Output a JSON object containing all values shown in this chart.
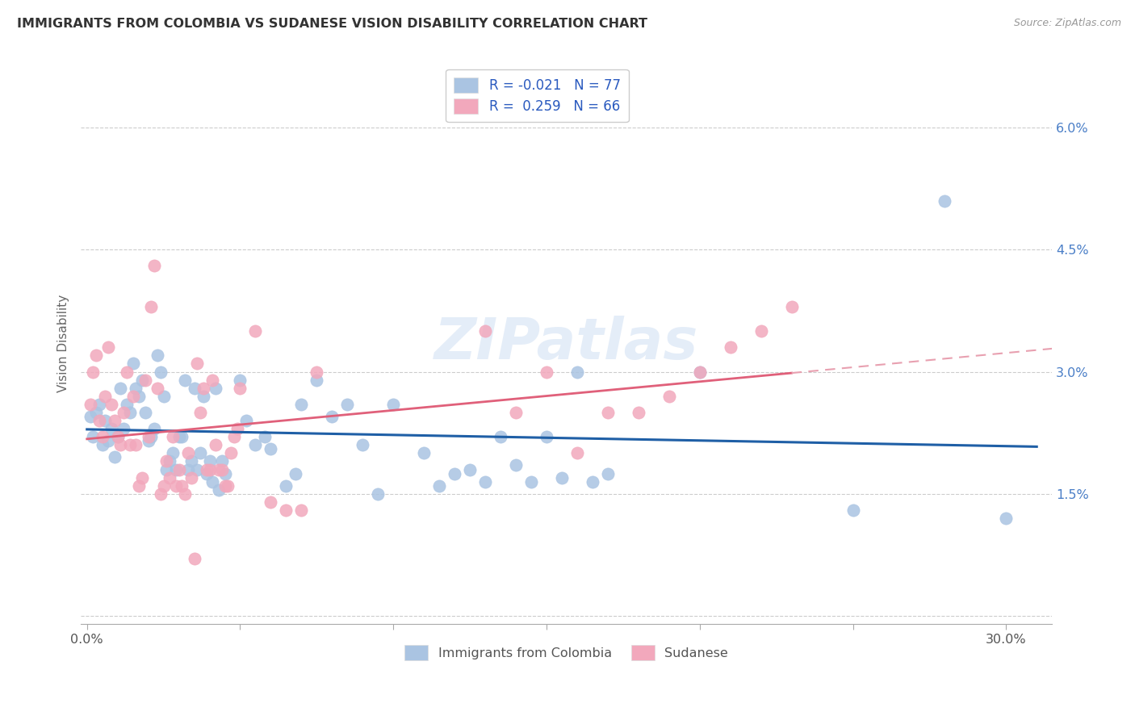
{
  "title": "IMMIGRANTS FROM COLOMBIA VS SUDANESE VISION DISABILITY CORRELATION CHART",
  "source": "Source: ZipAtlas.com",
  "ylabel": "Vision Disability",
  "ymin": -0.001,
  "ymax": 0.068,
  "xmin": -0.002,
  "xmax": 0.315,
  "watermark": "ZIPatlas",
  "colombia_color": "#aac4e2",
  "sudanese_color": "#f2a8bc",
  "colombia_line_color": "#1f5fa6",
  "sudanese_line_color": "#e0607a",
  "sudanese_dash_color": "#e8a0b0",
  "colombia_scatter": [
    [
      0.001,
      0.0245
    ],
    [
      0.002,
      0.022
    ],
    [
      0.003,
      0.025
    ],
    [
      0.004,
      0.026
    ],
    [
      0.005,
      0.021
    ],
    [
      0.006,
      0.024
    ],
    [
      0.007,
      0.0215
    ],
    [
      0.008,
      0.023
    ],
    [
      0.009,
      0.0195
    ],
    [
      0.01,
      0.022
    ],
    [
      0.011,
      0.028
    ],
    [
      0.012,
      0.023
    ],
    [
      0.013,
      0.026
    ],
    [
      0.014,
      0.025
    ],
    [
      0.015,
      0.031
    ],
    [
      0.016,
      0.028
    ],
    [
      0.017,
      0.027
    ],
    [
      0.018,
      0.029
    ],
    [
      0.019,
      0.025
    ],
    [
      0.02,
      0.0215
    ],
    [
      0.021,
      0.022
    ],
    [
      0.022,
      0.023
    ],
    [
      0.023,
      0.032
    ],
    [
      0.024,
      0.03
    ],
    [
      0.025,
      0.027
    ],
    [
      0.026,
      0.018
    ],
    [
      0.027,
      0.019
    ],
    [
      0.028,
      0.02
    ],
    [
      0.029,
      0.018
    ],
    [
      0.03,
      0.022
    ],
    [
      0.031,
      0.022
    ],
    [
      0.032,
      0.029
    ],
    [
      0.033,
      0.018
    ],
    [
      0.034,
      0.019
    ],
    [
      0.035,
      0.028
    ],
    [
      0.036,
      0.018
    ],
    [
      0.037,
      0.02
    ],
    [
      0.038,
      0.027
    ],
    [
      0.039,
      0.0175
    ],
    [
      0.04,
      0.019
    ],
    [
      0.041,
      0.0165
    ],
    [
      0.042,
      0.028
    ],
    [
      0.043,
      0.0155
    ],
    [
      0.044,
      0.019
    ],
    [
      0.045,
      0.0175
    ],
    [
      0.05,
      0.029
    ],
    [
      0.052,
      0.024
    ],
    [
      0.055,
      0.021
    ],
    [
      0.058,
      0.022
    ],
    [
      0.06,
      0.0205
    ],
    [
      0.065,
      0.016
    ],
    [
      0.068,
      0.0175
    ],
    [
      0.07,
      0.026
    ],
    [
      0.075,
      0.029
    ],
    [
      0.08,
      0.0245
    ],
    [
      0.085,
      0.026
    ],
    [
      0.09,
      0.021
    ],
    [
      0.095,
      0.015
    ],
    [
      0.1,
      0.026
    ],
    [
      0.11,
      0.02
    ],
    [
      0.115,
      0.016
    ],
    [
      0.12,
      0.0175
    ],
    [
      0.125,
      0.018
    ],
    [
      0.13,
      0.0165
    ],
    [
      0.135,
      0.022
    ],
    [
      0.14,
      0.0185
    ],
    [
      0.145,
      0.0165
    ],
    [
      0.15,
      0.022
    ],
    [
      0.155,
      0.017
    ],
    [
      0.16,
      0.03
    ],
    [
      0.165,
      0.0165
    ],
    [
      0.17,
      0.0175
    ],
    [
      0.2,
      0.03
    ],
    [
      0.25,
      0.013
    ],
    [
      0.28,
      0.051
    ],
    [
      0.3,
      0.012
    ]
  ],
  "sudanese_scatter": [
    [
      0.001,
      0.026
    ],
    [
      0.002,
      0.03
    ],
    [
      0.003,
      0.032
    ],
    [
      0.004,
      0.024
    ],
    [
      0.005,
      0.022
    ],
    [
      0.006,
      0.027
    ],
    [
      0.007,
      0.033
    ],
    [
      0.008,
      0.026
    ],
    [
      0.009,
      0.024
    ],
    [
      0.01,
      0.022
    ],
    [
      0.011,
      0.021
    ],
    [
      0.012,
      0.025
    ],
    [
      0.013,
      0.03
    ],
    [
      0.014,
      0.021
    ],
    [
      0.015,
      0.027
    ],
    [
      0.016,
      0.021
    ],
    [
      0.017,
      0.016
    ],
    [
      0.018,
      0.017
    ],
    [
      0.019,
      0.029
    ],
    [
      0.02,
      0.022
    ],
    [
      0.021,
      0.038
    ],
    [
      0.022,
      0.043
    ],
    [
      0.023,
      0.028
    ],
    [
      0.024,
      0.015
    ],
    [
      0.025,
      0.016
    ],
    [
      0.026,
      0.019
    ],
    [
      0.027,
      0.017
    ],
    [
      0.028,
      0.022
    ],
    [
      0.029,
      0.016
    ],
    [
      0.03,
      0.018
    ],
    [
      0.031,
      0.016
    ],
    [
      0.032,
      0.015
    ],
    [
      0.033,
      0.02
    ],
    [
      0.034,
      0.017
    ],
    [
      0.035,
      0.007
    ],
    [
      0.036,
      0.031
    ],
    [
      0.037,
      0.025
    ],
    [
      0.038,
      0.028
    ],
    [
      0.039,
      0.018
    ],
    [
      0.04,
      0.018
    ],
    [
      0.041,
      0.029
    ],
    [
      0.042,
      0.021
    ],
    [
      0.043,
      0.018
    ],
    [
      0.044,
      0.018
    ],
    [
      0.045,
      0.016
    ],
    [
      0.046,
      0.016
    ],
    [
      0.047,
      0.02
    ],
    [
      0.048,
      0.022
    ],
    [
      0.049,
      0.023
    ],
    [
      0.05,
      0.028
    ],
    [
      0.055,
      0.035
    ],
    [
      0.06,
      0.014
    ],
    [
      0.065,
      0.013
    ],
    [
      0.07,
      0.013
    ],
    [
      0.075,
      0.03
    ],
    [
      0.13,
      0.035
    ],
    [
      0.14,
      0.025
    ],
    [
      0.15,
      0.03
    ],
    [
      0.16,
      0.02
    ],
    [
      0.17,
      0.025
    ],
    [
      0.18,
      0.025
    ],
    [
      0.19,
      0.027
    ],
    [
      0.2,
      0.03
    ],
    [
      0.21,
      0.033
    ],
    [
      0.22,
      0.035
    ],
    [
      0.23,
      0.038
    ]
  ]
}
